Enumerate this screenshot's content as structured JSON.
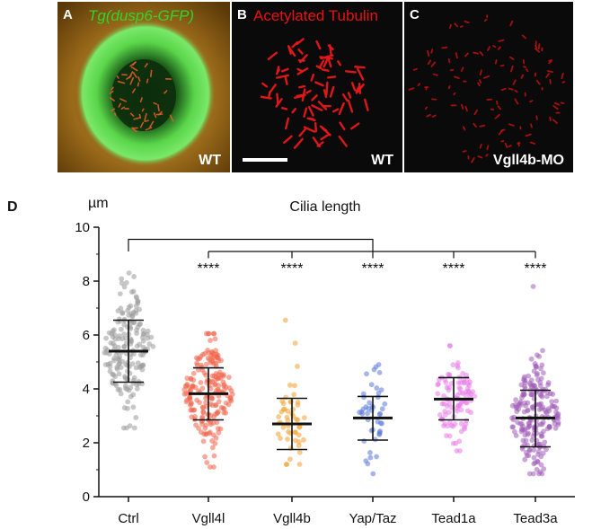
{
  "panels": [
    {
      "letter": "A",
      "title": "Tg(dusp6-GFP)",
      "title_color": "#2ed62e",
      "label": "WT"
    },
    {
      "letter": "B",
      "title": "Acetylated Tubulin",
      "title_color": "#e81010",
      "label": "WT"
    },
    {
      "letter": "C",
      "title": "",
      "title_color": "#e81010",
      "label": "Vgll4b-MO"
    }
  ],
  "chart_data": {
    "type": "scatter",
    "panel_letter": "D",
    "title": "Cilia length",
    "ylabel": "µm",
    "xlabel": "",
    "ylim": [
      0,
      10
    ],
    "yticks": [
      0,
      2,
      4,
      6,
      8,
      10
    ],
    "categories": [
      "Ctrl",
      "Vgll4l",
      "Vgll4b",
      "Yap/Taz",
      "Tead1a",
      "Tead3a"
    ],
    "series": [
      {
        "category": "Ctrl",
        "color": "#9a9a9a",
        "mean": 5.4,
        "sd_low": 4.25,
        "sd_high": 6.55,
        "min": 2.55,
        "max": 8.3,
        "n": 180,
        "significance": ""
      },
      {
        "category": "Vgll4l",
        "color": "#f0644a",
        "mean": 3.82,
        "sd_low": 2.85,
        "sd_high": 4.78,
        "min": 1.1,
        "max": 6.05,
        "n": 200,
        "significance": "****"
      },
      {
        "category": "Vgll4b",
        "color": "#f0a030",
        "mean": 2.7,
        "sd_low": 1.75,
        "sd_high": 3.65,
        "min": 1.2,
        "max": 6.55,
        "n": 50,
        "significance": "****"
      },
      {
        "category": "Yap/Taz",
        "color": "#5a78dc",
        "mean": 2.92,
        "sd_low": 2.1,
        "sd_high": 3.72,
        "min": 0.85,
        "max": 4.9,
        "n": 45,
        "significance": "****"
      },
      {
        "category": "Tead1a",
        "color": "#e87ae8",
        "mean": 3.62,
        "sd_low": 2.85,
        "sd_high": 4.42,
        "min": 1.7,
        "max": 5.6,
        "n": 100,
        "significance": "****"
      },
      {
        "category": "Tead3a",
        "color": "#a05cb8",
        "mean": 2.92,
        "sd_low": 1.85,
        "sd_high": 3.95,
        "min": 0.85,
        "max": 7.8,
        "n": 210,
        "significance": "****"
      }
    ],
    "comparison": "Ctrl vs. all treatments"
  }
}
